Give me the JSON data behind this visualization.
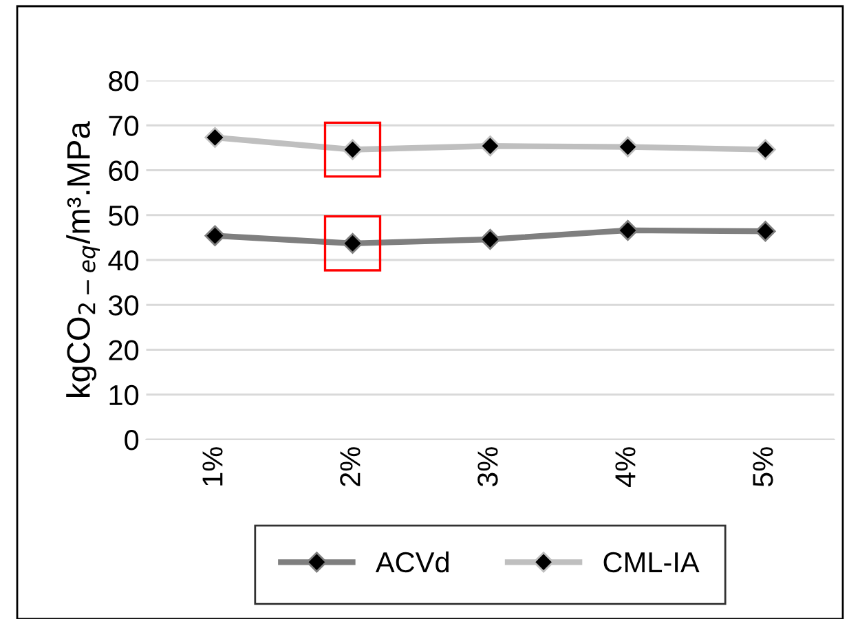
{
  "chart_data": {
    "type": "line",
    "ylabel": "kgCO$_{2−eq}$/m³.MPa",
    "categories": [
      "1%",
      "2%",
      "3%",
      "4%",
      "5%"
    ],
    "series": [
      {
        "name": "ACVd",
        "color": "#7f7f7f",
        "values": [
          45.4,
          43.7,
          44.6,
          46.6,
          46.4
        ]
      },
      {
        "name": "CML-IA",
        "color": "#bfbfbf",
        "values": [
          67.3,
          64.6,
          65.4,
          65.2,
          64.6
        ]
      }
    ],
    "ylim": [
      0,
      80
    ],
    "yticks": [
      0,
      10,
      20,
      30,
      40,
      50,
      60,
      70,
      80
    ],
    "grid": "y",
    "legend": "bottom",
    "marker": "diamond",
    "line_style": "solid"
  }
}
